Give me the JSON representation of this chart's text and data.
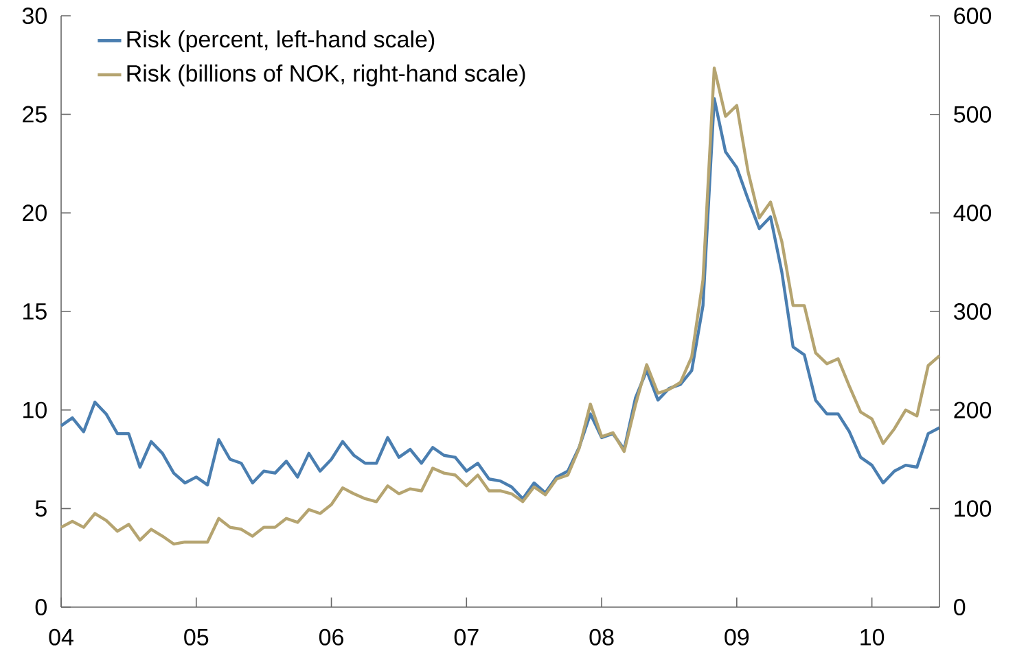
{
  "chart_data": {
    "type": "line",
    "x": [
      "2004-01",
      "2004-02",
      "2004-03",
      "2004-04",
      "2004-05",
      "2004-06",
      "2004-07",
      "2004-08",
      "2004-09",
      "2004-10",
      "2004-11",
      "2004-12",
      "2005-01",
      "2005-02",
      "2005-03",
      "2005-04",
      "2005-05",
      "2005-06",
      "2005-07",
      "2005-08",
      "2005-09",
      "2005-10",
      "2005-11",
      "2005-12",
      "2006-01",
      "2006-02",
      "2006-03",
      "2006-04",
      "2006-05",
      "2006-06",
      "2006-07",
      "2006-08",
      "2006-09",
      "2006-10",
      "2006-11",
      "2006-12",
      "2007-01",
      "2007-02",
      "2007-03",
      "2007-04",
      "2007-05",
      "2007-06",
      "2007-07",
      "2007-08",
      "2007-09",
      "2007-10",
      "2007-11",
      "2007-12",
      "2008-01",
      "2008-02",
      "2008-03",
      "2008-04",
      "2008-05",
      "2008-06",
      "2008-07",
      "2008-08",
      "2008-09",
      "2008-10",
      "2008-11",
      "2008-12",
      "2009-01",
      "2009-02",
      "2009-03",
      "2009-04",
      "2009-05",
      "2009-06",
      "2009-07",
      "2009-08",
      "2009-09",
      "2009-10",
      "2009-11",
      "2009-12",
      "2010-01",
      "2010-02",
      "2010-03",
      "2010-04",
      "2010-05",
      "2010-06",
      "2010-07"
    ],
    "series": [
      {
        "name": "Risk (percent, left-hand scale)",
        "color": "#4a7eb0",
        "values": [
          9.2,
          9.6,
          8.9,
          10.4,
          9.8,
          8.8,
          8.8,
          7.1,
          8.4,
          7.8,
          6.8,
          6.3,
          6.6,
          6.2,
          8.5,
          7.5,
          7.3,
          6.3,
          6.9,
          6.8,
          7.4,
          6.6,
          7.8,
          6.9,
          7.5,
          8.4,
          7.7,
          7.3,
          7.3,
          8.6,
          7.6,
          8.0,
          7.3,
          8.1,
          7.7,
          7.6,
          6.9,
          7.3,
          6.5,
          6.4,
          6.1,
          5.5,
          6.3,
          5.8,
          6.6,
          6.9,
          8.1,
          9.8,
          8.6,
          8.8,
          8.0,
          10.6,
          12.0,
          10.5,
          11.1,
          11.3,
          12.0,
          15.3,
          25.8,
          23.1,
          22.3,
          20.7,
          19.2,
          19.8,
          17.0,
          13.2,
          12.8,
          10.5,
          9.8,
          9.8,
          8.9,
          7.6,
          7.2,
          6.3,
          6.9,
          7.2,
          7.1,
          8.8,
          9.1
        ]
      },
      {
        "name": "Risk (billions of NOK, right-hand scale)",
        "color": "#b5a470",
        "axis": "y2",
        "values": [
          81,
          87,
          81,
          95,
          88,
          77,
          84,
          68,
          79,
          72,
          64,
          66,
          66,
          66,
          90,
          81,
          79,
          72,
          81,
          81,
          90,
          86,
          99,
          95,
          104,
          121,
          115,
          110,
          107,
          123,
          115,
          120,
          118,
          141,
          136,
          134,
          123,
          134,
          118,
          118,
          115,
          107,
          122,
          114,
          130,
          134,
          161,
          206,
          173,
          177,
          158,
          205,
          246,
          217,
          221,
          228,
          254,
          332,
          547,
          498,
          509,
          442,
          395,
          411,
          371,
          306,
          306,
          258,
          247,
          252,
          224,
          198,
          191,
          166,
          181,
          200,
          194,
          245,
          255
        ]
      }
    ],
    "xlim": [
      "2004-01",
      "2010-07"
    ],
    "xticks": [
      {
        "value": "2004-01",
        "label": "04"
      },
      {
        "value": "2005-01",
        "label": "05"
      },
      {
        "value": "2006-01",
        "label": "06"
      },
      {
        "value": "2007-01",
        "label": "07"
      },
      {
        "value": "2008-01",
        "label": "08"
      },
      {
        "value": "2009-01",
        "label": "09"
      },
      {
        "value": "2010-01",
        "label": "10"
      }
    ],
    "ylim": [
      0,
      30
    ],
    "yticks": [
      0,
      5,
      10,
      15,
      20,
      25,
      30
    ],
    "y2lim": [
      0,
      600
    ],
    "y2ticks": [
      0,
      100,
      200,
      300,
      400,
      500,
      600
    ],
    "legend": "top left",
    "grid": false,
    "marker": "none",
    "line_style": "solid"
  }
}
